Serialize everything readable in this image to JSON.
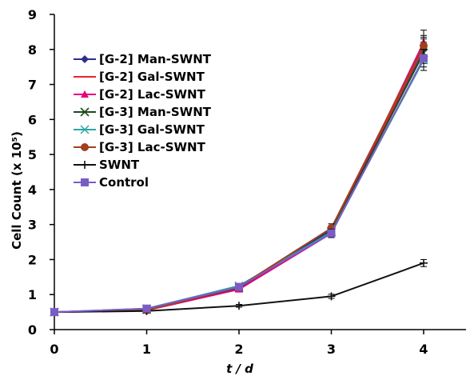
{
  "chart_data": {
    "type": "line",
    "title": "",
    "xlabel": "t / d",
    "ylabel": "Cell Count (x 10⁵)",
    "xlim": [
      0,
      4
    ],
    "ylim": [
      0,
      9
    ],
    "x": [
      0,
      1,
      2,
      3,
      4
    ],
    "x_ticks": [
      "0",
      "1",
      "2",
      "3",
      "4"
    ],
    "y_ticks": [
      "0",
      "1",
      "2",
      "3",
      "4",
      "5",
      "6",
      "7",
      "8",
      "9"
    ],
    "grid": false,
    "legend_position": "upper-left",
    "series": [
      {
        "name": "[G-2] Man-SWNT",
        "values": [
          0.5,
          0.58,
          1.2,
          2.85,
          8.0
        ],
        "err": [
          0.03,
          0.05,
          0.06,
          0.12,
          0.3
        ],
        "color": "#2E2E8C",
        "marker": "diamond"
      },
      {
        "name": "[G-2] Gal-SWNT",
        "values": [
          0.5,
          0.56,
          1.18,
          2.8,
          8.05
        ],
        "err": [
          0.03,
          0.05,
          0.06,
          0.12,
          0.3
        ],
        "color": "#E8262A",
        "marker": "none"
      },
      {
        "name": "[G-2] Lac-SWNT",
        "values": [
          0.5,
          0.55,
          1.15,
          2.75,
          8.2
        ],
        "err": [
          0.03,
          0.05,
          0.06,
          0.12,
          0.35
        ],
        "color": "#E6007E",
        "marker": "triangle"
      },
      {
        "name": "[G-3] Man-SWNT",
        "values": [
          0.5,
          0.57,
          1.2,
          2.8,
          7.9
        ],
        "err": [
          0.03,
          0.05,
          0.06,
          0.12,
          0.3
        ],
        "color": "#1E4A1E",
        "marker": "x"
      },
      {
        "name": "[G-3] Gal-SWNT",
        "values": [
          0.5,
          0.6,
          1.25,
          2.78,
          7.7
        ],
        "err": [
          0.03,
          0.05,
          0.06,
          0.12,
          0.3
        ],
        "color": "#2AA5A5",
        "marker": "asterisk"
      },
      {
        "name": "[G-3] Lac-SWNT",
        "values": [
          0.5,
          0.55,
          1.22,
          2.9,
          8.1
        ],
        "err": [
          0.03,
          0.05,
          0.06,
          0.12,
          0.3
        ],
        "color": "#A0401E",
        "marker": "circle"
      },
      {
        "name": "SWNT",
        "values": [
          0.5,
          0.53,
          0.68,
          0.95,
          1.9
        ],
        "err": [
          0.03,
          0.04,
          0.04,
          0.06,
          0.1
        ],
        "color": "#111111",
        "marker": "plus"
      },
      {
        "name": "Control",
        "values": [
          0.5,
          0.6,
          1.22,
          2.75,
          7.75
        ],
        "err": [
          0.03,
          0.05,
          0.06,
          0.12,
          0.25
        ],
        "color": "#7B5CC4",
        "marker": "square"
      }
    ]
  }
}
